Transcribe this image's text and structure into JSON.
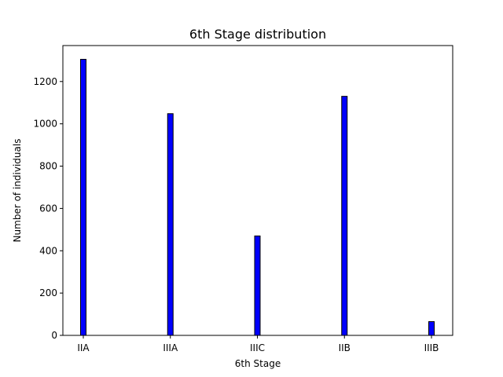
{
  "chart_data": {
    "type": "bar",
    "title": "6th Stage distribution",
    "xlabel": "6th Stage",
    "ylabel": "Number of individuals",
    "categories": [
      "IIA",
      "IIIA",
      "IIIC",
      "IIB",
      "IIIB"
    ],
    "values": [
      1305,
      1048,
      470,
      1130,
      65
    ],
    "ylim": [
      0,
      1370
    ],
    "yticks": [
      0,
      200,
      400,
      600,
      800,
      1000,
      1200
    ],
    "grid": false,
    "legend": "none",
    "colors": {
      "bar_fill": "#0000ff",
      "bar_edge": "#000000"
    }
  }
}
